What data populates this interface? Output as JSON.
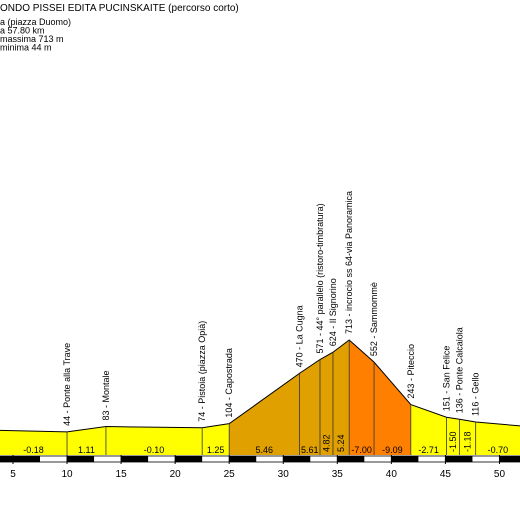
{
  "chart_data": {
    "type": "elevation-profile",
    "title": "ONDO PISSEI EDITA PUCINSKAITE (percorso corto)",
    "info": [
      "a (piazza Duomo)",
      "a 57.80 km",
      "massima 713 m",
      "minima 44 m"
    ],
    "x": [
      3.8,
      10.0,
      13.6,
      22.5,
      25.0,
      31.5,
      33.4,
      34.6,
      36.1,
      38.4,
      41.8,
      45.1,
      46.3,
      47.8,
      51.9
    ],
    "values": [
      55,
      44,
      83,
      74,
      104,
      470,
      571,
      624,
      713,
      552,
      243,
      151,
      136,
      116,
      88
    ],
    "point_labels": [
      null,
      "44 - Ponte alla Trave",
      "83 - Montale",
      "74 - Pistoia (piazza Opià)",
      "104 - Capostrada",
      "470 - La Cugna",
      "571 - 44° parallelo (ristoro-timbratura)",
      "624 - Il Signorino",
      "713 - incrocio ss 64-via Panoramica",
      "552 - Sammommè",
      "243 - Piteccio",
      "151 - San Felice",
      "136 - Ponte Calcaiola",
      "116 - Gello",
      null
    ],
    "grades": [
      -0.18,
      1.11,
      -0.1,
      1.25,
      5.46,
      5.61,
      4.82,
      5.24,
      -7.0,
      -9.09,
      -2.71,
      -1.5,
      -1.18,
      -0.7
    ],
    "grade_labels": [
      "-0.18",
      "1.11",
      "-0.10",
      "1.25",
      "5.46",
      "5.61",
      "4.82",
      "5.24",
      "-7.00",
      "-9.09",
      "-2.71",
      "-1.50",
      "-1.18",
      "-0.70"
    ],
    "segment_colors": [
      "#ffff00",
      "#ffff00",
      "#ffff00",
      "#ffff00",
      "#e0a000",
      "#e0a000",
      "#e0a000",
      "#e0a000",
      "#ff8000",
      "#ff8000",
      "#ffff00",
      "#ffff00",
      "#ffff00",
      "#ffff00"
    ],
    "xlim": [
      3.8,
      51.9
    ],
    "ylim": [
      -124,
      713
    ],
    "xticks": [
      5,
      10,
      15,
      20,
      25,
      30,
      35,
      40,
      45,
      50
    ]
  }
}
